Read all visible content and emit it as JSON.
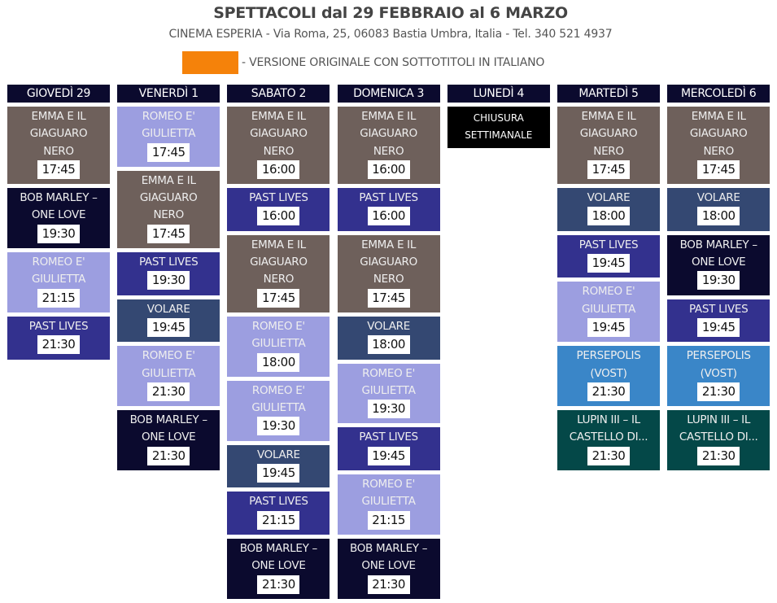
{
  "header": {
    "title": "SPETTACOLI dal 29 FEBBRAIO al 6 MARZO",
    "subtitle": "CINEMA ESPERIA - Via Roma, 25, 06083 Bastia Umbra, Italia - Tel. 340 521 4937",
    "legend_text": "- VERSIONE ORIGINALE CON SOTTOTITOLI IN ITALIANO",
    "legend_color": "#f5820a"
  },
  "colors": {
    "emma": "#6e605b",
    "bob": "#0b0a2e",
    "romeo": "#9c9ee0",
    "past": "#33318e",
    "volare": "#344872",
    "persepolis": "#3a86c8",
    "lupin": "#044848"
  },
  "days": [
    {
      "label": "GIOVEDÌ 29",
      "shows": [
        {
          "film": "emma",
          "title": [
            "EMMA E IL",
            "GIAGUARO",
            "NERO"
          ],
          "time": "17:45"
        },
        {
          "film": "bob",
          "title": [
            "BOB MARLEY –",
            "ONE LOVE"
          ],
          "time": "19:30"
        },
        {
          "film": "romeo",
          "title": [
            "ROMEO E'",
            "GIULIETTA"
          ],
          "time": "21:15"
        },
        {
          "film": "past",
          "title": [
            "PAST LIVES"
          ],
          "time": "21:30"
        }
      ]
    },
    {
      "label": "VENERDÌ 1",
      "shows": [
        {
          "film": "romeo",
          "title": [
            "ROMEO E'",
            "GIULIETTA"
          ],
          "time": "17:45"
        },
        {
          "film": "emma",
          "title": [
            "EMMA E IL",
            "GIAGUARO",
            "NERO"
          ],
          "time": "17:45"
        },
        {
          "film": "past",
          "title": [
            "PAST LIVES"
          ],
          "time": "19:30"
        },
        {
          "film": "volare",
          "title": [
            "VOLARE"
          ],
          "time": "19:45"
        },
        {
          "film": "romeo",
          "title": [
            "ROMEO E'",
            "GIULIETTA"
          ],
          "time": "21:30"
        },
        {
          "film": "bob",
          "title": [
            "BOB MARLEY –",
            "ONE LOVE"
          ],
          "time": "21:30"
        }
      ]
    },
    {
      "label": "SABATO 2",
      "shows": [
        {
          "film": "emma",
          "title": [
            "EMMA E IL",
            "GIAGUARO",
            "NERO"
          ],
          "time": "16:00"
        },
        {
          "film": "past",
          "title": [
            "PAST LIVES"
          ],
          "time": "16:00"
        },
        {
          "film": "emma",
          "title": [
            "EMMA E IL",
            "GIAGUARO",
            "NERO"
          ],
          "time": "17:45"
        },
        {
          "film": "romeo",
          "title": [
            "ROMEO E'",
            "GIULIETTA"
          ],
          "time": "18:00"
        },
        {
          "film": "romeo",
          "title": [
            "ROMEO E'",
            "GIULIETTA"
          ],
          "time": "19:30"
        },
        {
          "film": "volare",
          "title": [
            "VOLARE"
          ],
          "time": "19:45"
        },
        {
          "film": "past",
          "title": [
            "PAST LIVES"
          ],
          "time": "21:15"
        },
        {
          "film": "bob",
          "title": [
            "BOB MARLEY –",
            "ONE LOVE"
          ],
          "time": "21:30"
        }
      ]
    },
    {
      "label": "DOMENICA 3",
      "shows": [
        {
          "film": "emma",
          "title": [
            "EMMA E IL",
            "GIAGUARO",
            "NERO"
          ],
          "time": "16:00"
        },
        {
          "film": "past",
          "title": [
            "PAST LIVES"
          ],
          "time": "16:00"
        },
        {
          "film": "emma",
          "title": [
            "EMMA E IL",
            "GIAGUARO",
            "NERO"
          ],
          "time": "17:45"
        },
        {
          "film": "volare",
          "title": [
            "VOLARE"
          ],
          "time": "18:00"
        },
        {
          "film": "romeo",
          "title": [
            "ROMEO E'",
            "GIULIETTA"
          ],
          "time": "19:30"
        },
        {
          "film": "past",
          "title": [
            "PAST LIVES"
          ],
          "time": "19:45"
        },
        {
          "film": "romeo",
          "title": [
            "ROMEO E'",
            "GIULIETTA"
          ],
          "time": "21:15"
        },
        {
          "film": "bob",
          "title": [
            "BOB MARLEY –",
            "ONE LOVE"
          ],
          "time": "21:30"
        }
      ]
    },
    {
      "label": "LUNEDÌ 4",
      "closed": [
        "CHIUSURA",
        "SETTIMANALE"
      ],
      "shows": []
    },
    {
      "label": "MARTEDÌ 5",
      "shows": [
        {
          "film": "emma",
          "title": [
            "EMMA E IL",
            "GIAGUARO",
            "NERO"
          ],
          "time": "17:45"
        },
        {
          "film": "volare",
          "title": [
            "VOLARE"
          ],
          "time": "18:00"
        },
        {
          "film": "past",
          "title": [
            "PAST LIVES"
          ],
          "time": "19:45"
        },
        {
          "film": "romeo",
          "title": [
            "ROMEO E'",
            "GIULIETTA"
          ],
          "time": "19:45"
        },
        {
          "film": "persepolis",
          "title": [
            "PERSEPOLIS",
            "(VOST)"
          ],
          "time": "21:30"
        },
        {
          "film": "lupin",
          "title": [
            "LUPIN III – IL",
            "CASTELLO DI..."
          ],
          "time": "21:30"
        }
      ]
    },
    {
      "label": "MERCOLEDÌ 6",
      "shows": [
        {
          "film": "emma",
          "title": [
            "EMMA E IL",
            "GIAGUARO",
            "NERO"
          ],
          "time": "17:45"
        },
        {
          "film": "volare",
          "title": [
            "VOLARE"
          ],
          "time": "18:00"
        },
        {
          "film": "bob",
          "title": [
            "BOB MARLEY –",
            "ONE LOVE"
          ],
          "time": "19:30"
        },
        {
          "film": "past",
          "title": [
            "PAST LIVES"
          ],
          "time": "19:45"
        },
        {
          "film": "persepolis",
          "title": [
            "PERSEPOLIS",
            "(VOST)"
          ],
          "time": "21:30"
        },
        {
          "film": "lupin",
          "title": [
            "LUPIN III – IL",
            "CASTELLO DI..."
          ],
          "time": "21:30"
        }
      ]
    }
  ]
}
